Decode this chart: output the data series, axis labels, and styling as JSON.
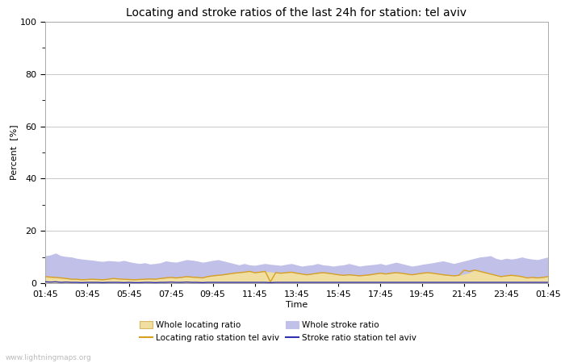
{
  "title": "Locating and stroke ratios of the last 24h for station: tel aviv",
  "ylabel": "Percent  [%]",
  "xlabel": "Time",
  "watermark": "www.lightningmaps.org",
  "ylim": [
    0,
    100
  ],
  "yticks": [
    0,
    20,
    40,
    60,
    80,
    100
  ],
  "xtick_labels": [
    "01:45",
    "03:45",
    "05:45",
    "07:45",
    "09:45",
    "11:45",
    "13:45",
    "15:45",
    "17:45",
    "19:45",
    "21:45",
    "23:45",
    "01:45"
  ],
  "background_color": "#ffffff",
  "plot_bg_color": "#ffffff",
  "grid_color": "#c8c8c8",
  "title_fontsize": 10,
  "tick_fontsize": 8,
  "label_fontsize": 8,
  "whole_locating_fill_color": "#f0dfa0",
  "whole_locating_line_color": "#d8b860",
  "whole_stroke_fill_color": "#c0c0e8",
  "whole_stroke_line_color": "#c0c0e8",
  "station_locating_line_color": "#d8a020",
  "station_stroke_line_color": "#3030b0",
  "n_points": 97,
  "whole_stroke": [
    10.5,
    10.8,
    11.5,
    10.5,
    10.2,
    10.0,
    9.5,
    9.2,
    9.0,
    8.8,
    8.5,
    8.3,
    8.6,
    8.5,
    8.3,
    8.7,
    8.2,
    7.8,
    7.5,
    7.8,
    7.3,
    7.5,
    7.8,
    8.5,
    8.2,
    8.0,
    8.5,
    9.0,
    8.8,
    8.5,
    8.0,
    8.3,
    8.7,
    9.0,
    8.5,
    8.0,
    7.5,
    7.0,
    7.5,
    7.0,
    6.8,
    7.2,
    7.5,
    7.2,
    7.0,
    6.8,
    7.2,
    7.5,
    7.0,
    6.5,
    6.8,
    7.0,
    7.5,
    7.0,
    6.8,
    6.5,
    6.8,
    7.0,
    7.5,
    7.0,
    6.5,
    6.8,
    7.0,
    7.2,
    7.5,
    7.0,
    7.5,
    8.0,
    7.5,
    7.0,
    6.5,
    6.8,
    7.2,
    7.5,
    7.8,
    8.2,
    8.5,
    8.0,
    7.5,
    8.0,
    8.5,
    9.0,
    9.5,
    10.0,
    10.2,
    10.5,
    9.5,
    9.0,
    9.5,
    9.2,
    9.5,
    10.0,
    9.5,
    9.2,
    9.0,
    9.5,
    10.0
  ],
  "whole_locating": [
    2.5,
    2.3,
    2.2,
    2.0,
    1.8,
    1.5,
    1.5,
    1.3,
    1.4,
    1.5,
    1.4,
    1.3,
    1.5,
    1.8,
    1.6,
    1.5,
    1.4,
    1.3,
    1.4,
    1.5,
    1.6,
    1.5,
    1.8,
    2.0,
    2.2,
    2.0,
    2.2,
    2.5,
    2.3,
    2.2,
    2.0,
    2.5,
    2.8,
    3.0,
    3.2,
    3.5,
    3.8,
    4.0,
    4.2,
    4.5,
    4.0,
    4.2,
    4.5,
    4.3,
    4.0,
    3.8,
    4.0,
    4.2,
    3.8,
    3.5,
    3.2,
    3.5,
    3.8,
    4.0,
    3.8,
    3.5,
    3.2,
    3.0,
    3.2,
    3.0,
    2.8,
    3.0,
    3.2,
    3.5,
    3.8,
    3.5,
    3.8,
    4.0,
    3.8,
    3.5,
    3.2,
    3.5,
    3.8,
    4.0,
    3.8,
    3.5,
    3.2,
    3.0,
    2.8,
    3.0,
    3.5,
    4.0,
    5.0,
    4.5,
    4.0,
    3.5,
    3.0,
    2.5,
    2.8,
    3.0,
    2.8,
    2.5,
    2.0,
    2.2,
    2.0,
    2.2,
    2.5
  ],
  "station_locating": [
    2.5,
    2.3,
    2.2,
    2.0,
    1.8,
    1.5,
    1.5,
    1.3,
    1.4,
    1.5,
    1.4,
    1.3,
    1.5,
    1.8,
    1.6,
    1.5,
    1.4,
    1.3,
    1.4,
    1.5,
    1.6,
    1.5,
    1.8,
    2.0,
    2.2,
    2.0,
    2.2,
    2.5,
    2.3,
    2.2,
    2.0,
    2.5,
    2.8,
    3.0,
    3.2,
    3.5,
    3.8,
    4.0,
    4.2,
    4.5,
    4.0,
    4.2,
    4.5,
    0.5,
    4.0,
    3.8,
    4.0,
    4.2,
    3.8,
    3.5,
    3.2,
    3.5,
    3.8,
    4.0,
    3.8,
    3.5,
    3.2,
    3.0,
    3.2,
    3.0,
    2.8,
    3.0,
    3.2,
    3.5,
    3.8,
    3.5,
    3.8,
    4.0,
    3.8,
    3.5,
    3.2,
    3.5,
    3.8,
    4.0,
    3.8,
    3.5,
    3.2,
    3.0,
    2.8,
    3.0,
    5.0,
    4.5,
    5.0,
    4.5,
    4.0,
    3.5,
    3.0,
    2.5,
    2.8,
    3.0,
    2.8,
    2.5,
    2.0,
    2.2,
    2.0,
    2.2,
    2.5
  ],
  "station_stroke": [
    0.5,
    0.4,
    0.5,
    0.3,
    0.4,
    0.3,
    0.3,
    0.2,
    0.3,
    0.3,
    0.3,
    0.2,
    0.3,
    0.3,
    0.3,
    0.2,
    0.3,
    0.2,
    0.2,
    0.3,
    0.3,
    0.2,
    0.3,
    0.3,
    0.4,
    0.3,
    0.3,
    0.4,
    0.3,
    0.3,
    0.2,
    0.3,
    0.3,
    0.3,
    0.3,
    0.3,
    0.3,
    0.3,
    0.3,
    0.3,
    0.3,
    0.3,
    0.3,
    0.2,
    0.3,
    0.3,
    0.3,
    0.3,
    0.3,
    0.3,
    0.3,
    0.3,
    0.3,
    0.3,
    0.3,
    0.3,
    0.3,
    0.3,
    0.3,
    0.3,
    0.3,
    0.3,
    0.3,
    0.3,
    0.3,
    0.3,
    0.3,
    0.3,
    0.3,
    0.3,
    0.3,
    0.3,
    0.3,
    0.3,
    0.3,
    0.3,
    0.3,
    0.3,
    0.3,
    0.3,
    0.3,
    0.3,
    0.3,
    0.3,
    0.3,
    0.3,
    0.3,
    0.3,
    0.3,
    0.3,
    0.3,
    0.3,
    0.3,
    0.3,
    0.3,
    0.3,
    0.3
  ]
}
